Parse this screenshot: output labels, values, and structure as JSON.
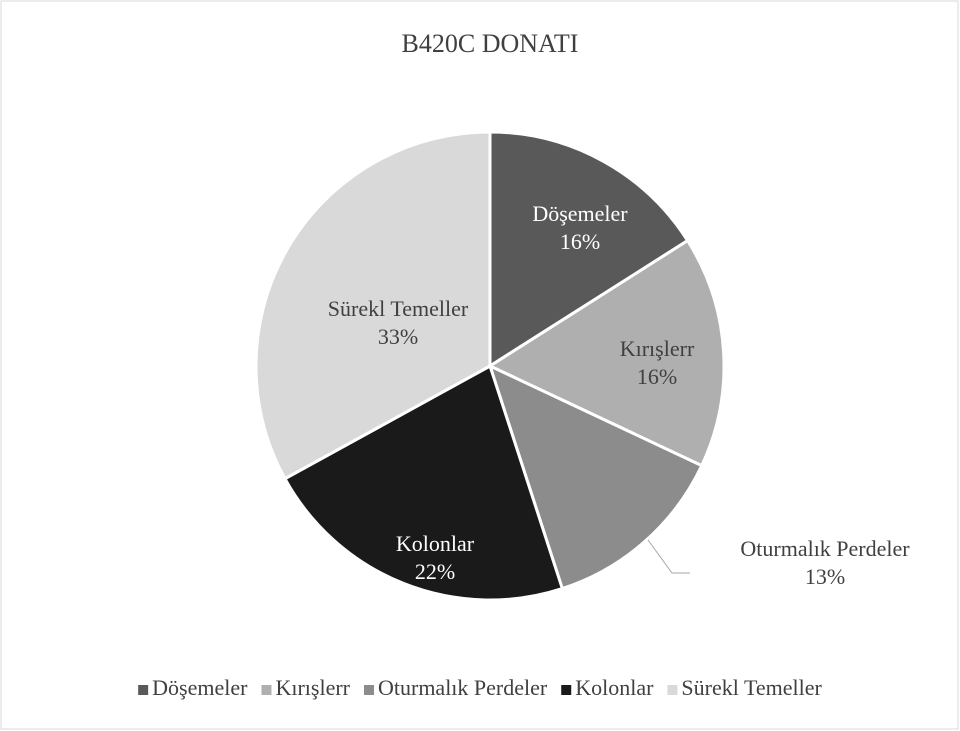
{
  "chart_data": {
    "type": "pie",
    "title": "B420C DONATI",
    "categories": [
      "Döşemeler",
      "Kırışlerr",
      "Oturmalık Perdeler",
      "Kolonlar",
      "Sürekl Temeller"
    ],
    "values": [
      16,
      16,
      13,
      22,
      33
    ],
    "value_labels": [
      "16%",
      "16%",
      "13%",
      "22%",
      "33%"
    ],
    "colors": [
      "#595959",
      "#afafaf",
      "#8c8c8c",
      "#1a1a1a",
      "#d9d9d9"
    ],
    "legend": "bottom"
  }
}
